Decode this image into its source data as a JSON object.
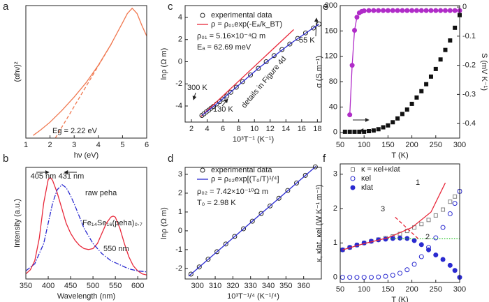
{
  "chart_data": [
    {
      "type": "line",
      "label": "a",
      "xlabel": "hν (eV)",
      "ylabel": "(αhν)²",
      "xlim": [
        1,
        6
      ],
      "xticks": [
        1,
        2,
        3,
        4,
        5,
        6
      ],
      "ylim": [
        0,
        100
      ],
      "series": [
        {
          "color": "#f07850",
          "style": "line",
          "x": [
            1.3,
            1.6,
            2,
            2.5,
            3,
            3.5,
            4,
            4.5,
            5,
            5.2,
            5.4,
            5.6,
            5.8,
            6
          ],
          "values": [
            2,
            6,
            12,
            21,
            31,
            42,
            55,
            70,
            87,
            94,
            98,
            94,
            85,
            77
          ]
        },
        {
          "color": "#f07850",
          "style": "dashed",
          "x": [
            2.22,
            4.6
          ],
          "values": [
            0,
            73
          ]
        }
      ],
      "annotations": [
        "Eg = 2.22 eV"
      ]
    },
    {
      "type": "line",
      "label": "b",
      "xlabel": "Wavelength (nm)",
      "ylabel": "Intensity (a.u.)",
      "xlim": [
        350,
        620
      ],
      "xticks": [
        350,
        400,
        450,
        500,
        550,
        600
      ],
      "ylim": [
        0,
        1.1
      ],
      "series": [
        {
          "color": "#e8283a",
          "style": "line",
          "x": [
            350,
            360,
            370,
            380,
            390,
            400,
            405,
            410,
            420,
            430,
            440,
            450,
            460,
            470,
            480,
            490,
            500,
            510,
            520,
            530,
            540,
            545,
            550,
            560,
            570,
            580,
            590,
            600,
            610,
            620
          ],
          "values": [
            0.05,
            0.09,
            0.18,
            0.4,
            0.75,
            0.98,
            1.0,
            0.97,
            0.85,
            0.7,
            0.55,
            0.45,
            0.38,
            0.33,
            0.3,
            0.29,
            0.3,
            0.35,
            0.45,
            0.55,
            0.61,
            0.62,
            0.61,
            0.5,
            0.35,
            0.22,
            0.13,
            0.08,
            0.05,
            0.04
          ]
        },
        {
          "color": "#2a2ad0",
          "style": "dashdot",
          "x": [
            350,
            370,
            390,
            400,
            410,
            420,
            431,
            440,
            450,
            460,
            480,
            500,
            520,
            540,
            560,
            580,
            600,
            620
          ],
          "values": [
            0.08,
            0.15,
            0.35,
            0.55,
            0.75,
            0.88,
            0.93,
            0.9,
            0.82,
            0.72,
            0.5,
            0.35,
            0.25,
            0.18,
            0.14,
            0.1,
            0.08,
            0.07
          ]
        }
      ],
      "annotations": [
        "405 nm",
        "431 nm",
        "raw peha",
        "Fe₁₄Se₁₆(peha)₀.₇",
        "550 nm"
      ]
    },
    {
      "type": "line",
      "label": "c",
      "xlabel": "10³T⁻¹ (K⁻¹)",
      "ylabel": "lnρ (Ω m)",
      "xlim": [
        1.2,
        18.5
      ],
      "xticks": [
        2,
        4,
        6,
        8,
        10,
        12,
        14,
        16,
        18
      ],
      "ylim": [
        -5.45,
        5.07
      ],
      "yticks": [
        -4,
        -2,
        0,
        2,
        4
      ],
      "series": [
        {
          "name": "experimental data",
          "color": "#222222",
          "style": "circle",
          "x": [
            3.33,
            3.6,
            3.9,
            4.2,
            4.5,
            4.8,
            5.2,
            5.6,
            6,
            6.5,
            7,
            7.7,
            8.5,
            9.5,
            10.5,
            11.5,
            12.5,
            13.5,
            14.5,
            15.5,
            16.5,
            17.5,
            18.2
          ],
          "values": [
            -4.85,
            -4.7,
            -4.53,
            -4.37,
            -4.2,
            -4.04,
            -3.82,
            -3.6,
            -3.38,
            -3.1,
            -2.76,
            -2.3,
            -1.8,
            -1.2,
            -0.6,
            0,
            0.55,
            1.1,
            1.6,
            2.1,
            2.6,
            3.05,
            3.4
          ]
        },
        {
          "name": "ρ = ρ₀₁exp(-Eₐ/k_BT)",
          "color": "#e8283a",
          "style": "line",
          "x": [
            3.2,
            15
          ],
          "values": [
            -4.95,
            2.9
          ]
        },
        {
          "color": "#2a2ad0",
          "style": "line",
          "x": [
            3.33,
            5.6,
            7.7,
            10.5,
            14.5,
            18.2
          ],
          "values": [
            -4.85,
            -3.6,
            -2.3,
            -0.6,
            1.6,
            3.4
          ]
        }
      ],
      "annotations": [
        "ρ₀₁ = 5.16×10⁻⁴Ω m",
        "Eₐ = 62.69 meV",
        "300 K",
        "130 K",
        "55 K",
        "details in Figure 4d"
      ]
    },
    {
      "type": "line",
      "label": "d",
      "xlabel": "10³T⁻¹/⁴ (K⁻¹/⁴)",
      "ylabel": "lnρ (Ω m)",
      "xlim": [
        293,
        370
      ],
      "xticks": [
        300,
        310,
        320,
        330,
        340,
        350,
        360
      ],
      "ylim": [
        -2.56,
        3.37
      ],
      "yticks": [
        -2,
        -1,
        0,
        1,
        2,
        3
      ],
      "series": [
        {
          "name": "experimental data",
          "color": "#222222",
          "style": "circle",
          "x": [
            296.3,
            301,
            306,
            311,
            316,
            321,
            326,
            331,
            336,
            341,
            346,
            351,
            356,
            361,
            366.6
          ],
          "values": [
            -2.3,
            -1.92,
            -1.51,
            -1.11,
            -0.7,
            -0.3,
            0.11,
            0.51,
            0.92,
            1.32,
            1.73,
            2.14,
            2.54,
            2.95,
            3.4
          ]
        },
        {
          "name": "ρ = ρ₀₂exp[(T₀/T)¹/⁴]",
          "color": "#2a2ad0",
          "style": "line",
          "x": [
            295,
            367
          ],
          "values": [
            -2.41,
            3.43
          ]
        }
      ],
      "annotations": [
        "ρ₀₂ = 7.42×10⁻¹⁰Ω m",
        "T₀ = 2.98 K"
      ]
    },
    {
      "type": "line",
      "label": "e",
      "xlabel": "T (K)",
      "ylabel": "σ (S m⁻¹)",
      "y2label": "S (mV K⁻¹)",
      "xlim": [
        50,
        300
      ],
      "xticks": [
        50,
        100,
        150,
        200,
        250,
        300
      ],
      "ylim": [
        -9,
        200
      ],
      "yticks": [
        0,
        40,
        80,
        120,
        160,
        200
      ],
      "y2lim": [
        -0.45,
        0.005
      ],
      "y2ticks": [
        0,
        -0.1,
        -0.2,
        -0.3,
        -0.4
      ],
      "series": [
        {
          "color": "#111111",
          "style": "square-filled",
          "x": [
            60,
            70,
            80,
            90,
            100,
            110,
            120,
            130,
            140,
            150,
            160,
            170,
            180,
            190,
            200,
            210,
            220,
            230,
            240,
            250,
            260,
            270,
            280,
            290,
            300
          ],
          "values": [
            1,
            1,
            1,
            1,
            1,
            2,
            3,
            5,
            8,
            11,
            16,
            22,
            29,
            36,
            45,
            55,
            65,
            76,
            88,
            100,
            115,
            130,
            145,
            165,
            185
          ]
        },
        {
          "color": "#b02cc8",
          "style": "circle-line",
          "axis": "y2",
          "x": [
            70,
            75,
            80,
            85,
            90,
            95,
            100,
            110,
            120,
            130,
            140,
            150,
            160,
            170,
            180,
            190,
            200,
            210,
            220,
            230,
            240,
            250,
            260,
            270,
            280,
            290,
            300
          ],
          "values": [
            -0.37,
            -0.2,
            -0.08,
            -0.035,
            -0.02,
            -0.015,
            -0.013,
            -0.012,
            -0.012,
            -0.012,
            -0.012,
            -0.012,
            -0.012,
            -0.012,
            -0.012,
            -0.012,
            -0.012,
            -0.012,
            -0.012,
            -0.012,
            -0.012,
            -0.012,
            -0.012,
            -0.012,
            -0.012,
            -0.012,
            -0.012
          ]
        }
      ]
    },
    {
      "type": "line",
      "label": "f",
      "xlabel": "T (K)",
      "ylabel": "κ, κlat, κel (W K⁻¹ m⁻¹)",
      "xlim": [
        50,
        300
      ],
      "xticks": [
        50,
        100,
        150,
        200,
        250,
        300
      ],
      "ylim": [
        -0.15,
        3.3
      ],
      "yticks": [
        0,
        1,
        2,
        3
      ],
      "series": [
        {
          "name": "κ = κel+κlat",
          "color": "#808080",
          "style": "square",
          "x": [
            55,
            70,
            85,
            100,
            115,
            130,
            145,
            160,
            175,
            190,
            205,
            220,
            235,
            250,
            265,
            280,
            290,
            300
          ],
          "values": [
            0.8,
            0.87,
            0.94,
            1.0,
            1.05,
            1.1,
            1.14,
            1.19,
            1.26,
            1.35,
            1.45,
            1.55,
            1.67,
            1.8,
            1.97,
            2.2,
            2.35,
            2.5
          ]
        },
        {
          "name": "κel",
          "color": "#2a2ad0",
          "style": "circle",
          "x": [
            55,
            70,
            85,
            100,
            115,
            130,
            145,
            160,
            175,
            190,
            205,
            220,
            235,
            250,
            265,
            280,
            290,
            300
          ],
          "values": [
            0,
            0,
            0,
            0,
            0,
            0.01,
            0.03,
            0.06,
            0.12,
            0.22,
            0.38,
            0.6,
            0.87,
            1.15,
            1.45,
            1.85,
            2.15,
            2.5
          ]
        },
        {
          "name": "κlat",
          "color": "#2a2ad0",
          "style": "circle-filled",
          "x": [
            55,
            70,
            85,
            100,
            115,
            130,
            145,
            160,
            175,
            190,
            205,
            220,
            235,
            250,
            265,
            280,
            290,
            300
          ],
          "values": [
            0.8,
            0.87,
            0.94,
            1.0,
            1.05,
            1.09,
            1.11,
            1.13,
            1.14,
            1.13,
            1.07,
            0.95,
            0.8,
            0.65,
            0.52,
            0.35,
            0.2,
            0
          ]
        },
        {
          "color": "#e8283a",
          "style": "line",
          "x": [
            55,
            100,
            150,
            200,
            240,
            270
          ],
          "values": [
            0.8,
            0.98,
            1.15,
            1.45,
            1.9,
            2.75
          ]
        },
        {
          "color": "#20c020",
          "style": "dotted",
          "x": [
            150,
            300
          ],
          "values": [
            1.12,
            1.12
          ]
        },
        {
          "color": "#e8283a",
          "style": "dashed",
          "x": [
            165,
            215
          ],
          "values": [
            1.75,
            1.1
          ]
        }
      ],
      "annotations": [
        "1",
        "2",
        "3"
      ]
    }
  ]
}
